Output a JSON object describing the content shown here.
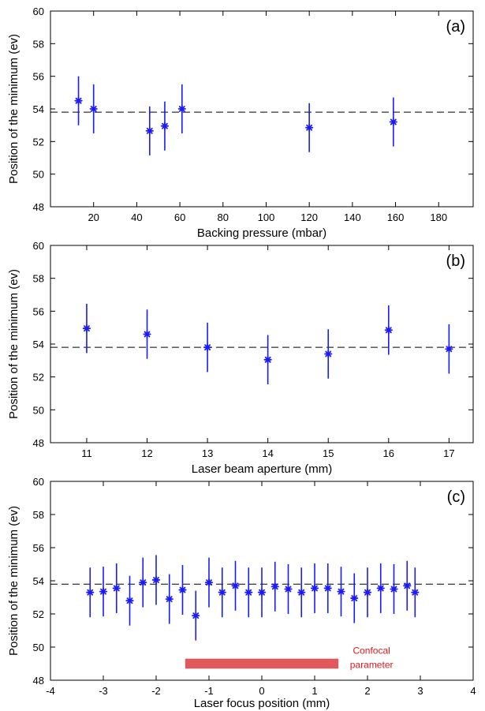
{
  "chart_data": [
    {
      "type": "scatter",
      "panel_label": "(a)",
      "xlabel": "Backing pressure (mbar)",
      "ylabel": "Position of the minimum (ev)",
      "xlim": [
        0,
        196
      ],
      "ylim": [
        48,
        60
      ],
      "xticks": [
        20,
        40,
        60,
        80,
        100,
        120,
        140,
        160,
        180
      ],
      "yticks": [
        48,
        50,
        52,
        54,
        56,
        58,
        60
      ],
      "reference_line": 53.8,
      "points": [
        {
          "x": 13,
          "y": 54.5,
          "err": 1.5
        },
        {
          "x": 20,
          "y": 54.0,
          "err": 1.5
        },
        {
          "x": 46,
          "y": 52.65,
          "err": 1.5
        },
        {
          "x": 53,
          "y": 52.95,
          "err": 1.5
        },
        {
          "x": 61,
          "y": 54.0,
          "err": 1.5
        },
        {
          "x": 120,
          "y": 52.85,
          "err": 1.5
        },
        {
          "x": 159,
          "y": 53.2,
          "err": 1.5
        }
      ]
    },
    {
      "type": "scatter",
      "panel_label": "(b)",
      "xlabel": "Laser beam aperture (mm)",
      "ylabel": "Position of the minimum (ev)",
      "xlim": [
        10.4,
        17.4
      ],
      "ylim": [
        48,
        60
      ],
      "xticks": [
        11,
        12,
        13,
        14,
        15,
        16,
        17
      ],
      "yticks": [
        48,
        50,
        52,
        54,
        56,
        58,
        60
      ],
      "reference_line": 53.8,
      "points": [
        {
          "x": 11,
          "y": 54.95,
          "err": 1.5
        },
        {
          "x": 12,
          "y": 54.6,
          "err": 1.5
        },
        {
          "x": 13,
          "y": 53.8,
          "err": 1.5
        },
        {
          "x": 14,
          "y": 53.05,
          "err": 1.5
        },
        {
          "x": 15,
          "y": 53.4,
          "err": 1.5
        },
        {
          "x": 16,
          "y": 54.85,
          "err": 1.5
        },
        {
          "x": 17,
          "y": 53.7,
          "err": 1.5
        }
      ]
    },
    {
      "type": "scatter",
      "panel_label": "(c)",
      "xlabel": "Laser focus position (mm)",
      "ylabel": "Position of the minimum (ev)",
      "xlim": [
        -4,
        4
      ],
      "ylim": [
        48,
        60
      ],
      "xticks": [
        -4,
        -3,
        -2,
        -1,
        0,
        1,
        2,
        3,
        4
      ],
      "yticks": [
        48,
        50,
        52,
        54,
        56,
        58,
        60
      ],
      "reference_line": 53.8,
      "annotation": {
        "line1": "Confocal",
        "line2": "parameter",
        "x_range": [
          -1.45,
          1.45
        ],
        "y_range": [
          48.7,
          49.3
        ],
        "color": "#e0585c"
      },
      "points": [
        {
          "x": -3.25,
          "y": 53.3,
          "err": 1.5
        },
        {
          "x": -3.0,
          "y": 53.35,
          "err": 1.5
        },
        {
          "x": -2.75,
          "y": 53.55,
          "err": 1.5
        },
        {
          "x": -2.5,
          "y": 52.8,
          "err": 1.5
        },
        {
          "x": -2.25,
          "y": 53.9,
          "err": 1.5
        },
        {
          "x": -2.0,
          "y": 54.05,
          "err": 1.5
        },
        {
          "x": -1.75,
          "y": 52.9,
          "err": 1.5
        },
        {
          "x": -1.5,
          "y": 53.45,
          "err": 1.5
        },
        {
          "x": -1.25,
          "y": 51.9,
          "err": 1.5
        },
        {
          "x": -1.0,
          "y": 53.9,
          "err": 1.5
        },
        {
          "x": -0.75,
          "y": 53.3,
          "err": 1.5
        },
        {
          "x": -0.5,
          "y": 53.7,
          "err": 1.5
        },
        {
          "x": -0.25,
          "y": 53.3,
          "err": 1.5
        },
        {
          "x": 0.0,
          "y": 53.3,
          "err": 1.5
        },
        {
          "x": 0.25,
          "y": 53.65,
          "err": 1.5
        },
        {
          "x": 0.5,
          "y": 53.5,
          "err": 1.5
        },
        {
          "x": 0.75,
          "y": 53.3,
          "err": 1.5
        },
        {
          "x": 1.0,
          "y": 53.55,
          "err": 1.5
        },
        {
          "x": 1.25,
          "y": 53.55,
          "err": 1.5
        },
        {
          "x": 1.5,
          "y": 53.35,
          "err": 1.5
        },
        {
          "x": 1.75,
          "y": 52.95,
          "err": 1.5
        },
        {
          "x": 2.0,
          "y": 53.3,
          "err": 1.5
        },
        {
          "x": 2.25,
          "y": 53.55,
          "err": 1.5
        },
        {
          "x": 2.5,
          "y": 53.5,
          "err": 1.5
        },
        {
          "x": 2.75,
          "y": 53.7,
          "err": 1.5
        },
        {
          "x": 2.9,
          "y": 53.3,
          "err": 1.5
        }
      ]
    }
  ],
  "colors": {
    "marker": "#1a1aff",
    "confocal_bar": "#e0585c",
    "confocal_text": "#e0181c"
  }
}
